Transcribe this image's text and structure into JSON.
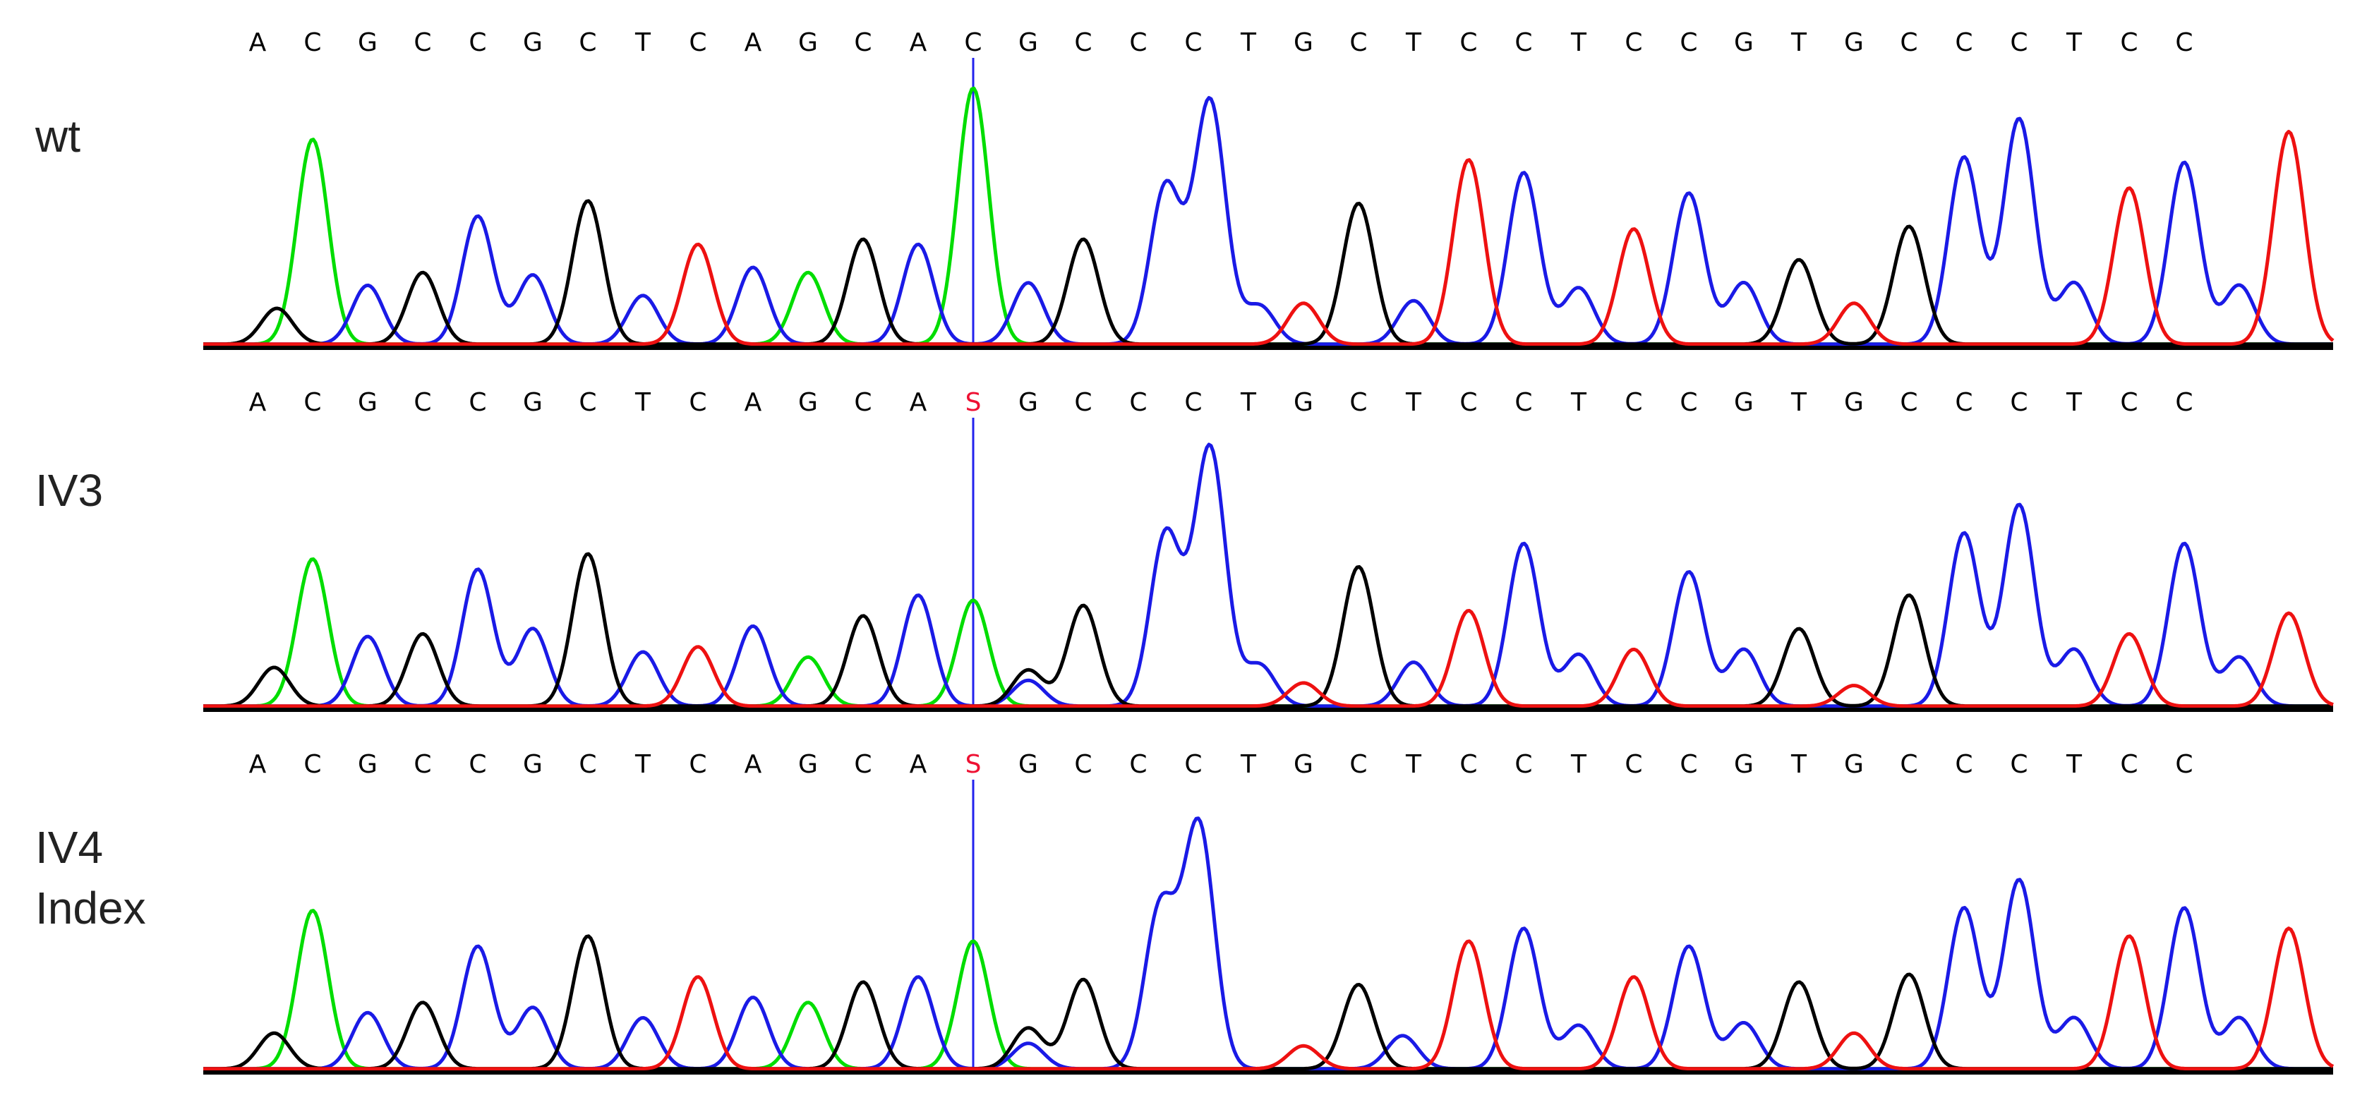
{
  "chart_data": {
    "type": "line",
    "bases": [
      "A",
      "C",
      "G",
      "C",
      "C",
      "G",
      "C",
      "T",
      "C",
      "A",
      "G",
      "C",
      "A",
      "C",
      "G",
      "C",
      "C",
      "C",
      "T",
      "G",
      "C",
      "T",
      "C",
      "C",
      "T",
      "C",
      "C",
      "G",
      "T",
      "G",
      "C",
      "C",
      "C",
      "T",
      "C",
      "C"
    ],
    "highlight_index": 13,
    "colors": {
      "A": "#00dd00",
      "C": "#1a1ae6",
      "G": "#000000",
      "T": "#ee1111",
      "call_highlight": "#ee1133",
      "cursor": "#2222ee",
      "baseline": "#000000"
    },
    "tracks": [
      {
        "label": "wt",
        "calls": [
          "A",
          "C",
          "G",
          "C",
          "C",
          "G",
          "C",
          "T",
          "C",
          "A",
          "G",
          "C",
          "A",
          "C",
          "G",
          "C",
          "C",
          "C",
          "T",
          "G",
          "C",
          "T",
          "C",
          "C",
          "T",
          "C",
          "C",
          "G",
          "T",
          "G",
          "C",
          "C",
          "C",
          "T",
          "C",
          "C"
        ],
        "peaks": [
          {
            "base": "G",
            "x": 0.35,
            "h": 0.14
          },
          {
            "base": "A",
            "x": 1,
            "h": 0.8
          },
          {
            "base": "C",
            "x": 2,
            "h": 0.23
          },
          {
            "base": "G",
            "x": 3,
            "h": 0.28
          },
          {
            "base": "C",
            "x": 4,
            "h": 0.5
          },
          {
            "base": "C",
            "x": 5,
            "h": 0.27
          },
          {
            "base": "G",
            "x": 6,
            "h": 0.56
          },
          {
            "base": "C",
            "x": 7,
            "h": 0.19
          },
          {
            "base": "T",
            "x": 8,
            "h": 0.39
          },
          {
            "base": "C",
            "x": 9,
            "h": 0.3
          },
          {
            "base": "A",
            "x": 10,
            "h": 0.28
          },
          {
            "base": "G",
            "x": 11,
            "h": 0.41
          },
          {
            "base": "C",
            "x": 12,
            "h": 0.39
          },
          {
            "base": "A",
            "x": 13,
            "h": 1.0
          },
          {
            "base": "C",
            "x": 14,
            "h": 0.24
          },
          {
            "base": "G",
            "x": 15,
            "h": 0.41
          },
          {
            "base": "C",
            "x": 16.5,
            "h": 0.62
          },
          {
            "base": "C",
            "x": 17.3,
            "h": 0.95
          },
          {
            "base": "C",
            "x": 18.2,
            "h": 0.15
          },
          {
            "base": "T",
            "x": 19,
            "h": 0.16
          },
          {
            "base": "G",
            "x": 20,
            "h": 0.55
          },
          {
            "base": "C",
            "x": 21,
            "h": 0.17
          },
          {
            "base": "T",
            "x": 22,
            "h": 0.72
          },
          {
            "base": "C",
            "x": 23,
            "h": 0.67
          },
          {
            "base": "C",
            "x": 24,
            "h": 0.22
          },
          {
            "base": "T",
            "x": 25,
            "h": 0.45
          },
          {
            "base": "C",
            "x": 26,
            "h": 0.59
          },
          {
            "base": "C",
            "x": 27,
            "h": 0.24
          },
          {
            "base": "G",
            "x": 28,
            "h": 0.33
          },
          {
            "base": "T",
            "x": 29,
            "h": 0.16
          },
          {
            "base": "G",
            "x": 30,
            "h": 0.46
          },
          {
            "base": "C",
            "x": 31,
            "h": 0.73
          },
          {
            "base": "C",
            "x": 32,
            "h": 0.88
          },
          {
            "base": "C",
            "x": 33,
            "h": 0.24
          },
          {
            "base": "T",
            "x": 34,
            "h": 0.61
          },
          {
            "base": "C",
            "x": 35,
            "h": 0.71
          },
          {
            "base": "C",
            "x": 36,
            "h": 0.23
          },
          {
            "base": "T",
            "x": 36.9,
            "h": 0.83
          }
        ]
      },
      {
        "label": "IV3",
        "calls": [
          "A",
          "C",
          "G",
          "C",
          "C",
          "G",
          "C",
          "T",
          "C",
          "A",
          "G",
          "C",
          "A",
          "S",
          "G",
          "C",
          "C",
          "C",
          "T",
          "G",
          "C",
          "T",
          "C",
          "C",
          "T",
          "C",
          "C",
          "G",
          "T",
          "G",
          "C",
          "C",
          "C",
          "T",
          "C",
          "C"
        ],
        "peaks": [
          {
            "base": "G",
            "x": 0.3,
            "h": 0.15
          },
          {
            "base": "A",
            "x": 1,
            "h": 0.57
          },
          {
            "base": "C",
            "x": 2,
            "h": 0.27
          },
          {
            "base": "G",
            "x": 3,
            "h": 0.28
          },
          {
            "base": "C",
            "x": 4,
            "h": 0.53
          },
          {
            "base": "C",
            "x": 5,
            "h": 0.3
          },
          {
            "base": "G",
            "x": 6,
            "h": 0.59
          },
          {
            "base": "C",
            "x": 7,
            "h": 0.21
          },
          {
            "base": "T",
            "x": 8,
            "h": 0.23
          },
          {
            "base": "C",
            "x": 9,
            "h": 0.31
          },
          {
            "base": "A",
            "x": 10,
            "h": 0.19
          },
          {
            "base": "G",
            "x": 11,
            "h": 0.35
          },
          {
            "base": "C",
            "x": 12,
            "h": 0.43
          },
          {
            "base": "A",
            "x": 13,
            "h": 0.41
          },
          {
            "base": "G",
            "x": 14,
            "h": 0.14
          },
          {
            "base": "C",
            "x": 14,
            "h": 0.1
          },
          {
            "base": "G",
            "x": 15,
            "h": 0.39
          },
          {
            "base": "C",
            "x": 16.5,
            "h": 0.67
          },
          {
            "base": "C",
            "x": 17.3,
            "h": 1.0
          },
          {
            "base": "C",
            "x": 18.2,
            "h": 0.16
          },
          {
            "base": "T",
            "x": 19,
            "h": 0.09
          },
          {
            "base": "G",
            "x": 20,
            "h": 0.54
          },
          {
            "base": "C",
            "x": 21,
            "h": 0.17
          },
          {
            "base": "T",
            "x": 22,
            "h": 0.37
          },
          {
            "base": "C",
            "x": 23,
            "h": 0.63
          },
          {
            "base": "C",
            "x": 24,
            "h": 0.2
          },
          {
            "base": "T",
            "x": 25,
            "h": 0.22
          },
          {
            "base": "C",
            "x": 26,
            "h": 0.52
          },
          {
            "base": "C",
            "x": 27,
            "h": 0.22
          },
          {
            "base": "G",
            "x": 28,
            "h": 0.3
          },
          {
            "base": "T",
            "x": 29,
            "h": 0.08
          },
          {
            "base": "G",
            "x": 30,
            "h": 0.43
          },
          {
            "base": "C",
            "x": 31,
            "h": 0.67
          },
          {
            "base": "C",
            "x": 32,
            "h": 0.78
          },
          {
            "base": "C",
            "x": 33,
            "h": 0.22
          },
          {
            "base": "T",
            "x": 34,
            "h": 0.28
          },
          {
            "base": "C",
            "x": 35,
            "h": 0.63
          },
          {
            "base": "C",
            "x": 36,
            "h": 0.19
          },
          {
            "base": "T",
            "x": 36.9,
            "h": 0.36
          }
        ]
      },
      {
        "label": "IV4\nIndex",
        "calls": [
          "A",
          "C",
          "G",
          "C",
          "C",
          "G",
          "C",
          "T",
          "C",
          "A",
          "G",
          "C",
          "A",
          "S",
          "G",
          "C",
          "C",
          "C",
          "T",
          "G",
          "C",
          "T",
          "C",
          "C",
          "T",
          "C",
          "C",
          "G",
          "T",
          "G",
          "C",
          "C",
          "C",
          "T",
          "C",
          "C"
        ],
        "peaks": [
          {
            "base": "G",
            "x": 0.3,
            "h": 0.14
          },
          {
            "base": "A",
            "x": 1,
            "h": 0.62
          },
          {
            "base": "C",
            "x": 2,
            "h": 0.22
          },
          {
            "base": "G",
            "x": 3,
            "h": 0.26
          },
          {
            "base": "C",
            "x": 4,
            "h": 0.48
          },
          {
            "base": "C",
            "x": 5,
            "h": 0.24
          },
          {
            "base": "G",
            "x": 6,
            "h": 0.52
          },
          {
            "base": "C",
            "x": 7,
            "h": 0.2
          },
          {
            "base": "T",
            "x": 8,
            "h": 0.36
          },
          {
            "base": "C",
            "x": 9,
            "h": 0.28
          },
          {
            "base": "A",
            "x": 10,
            "h": 0.26
          },
          {
            "base": "G",
            "x": 11,
            "h": 0.34
          },
          {
            "base": "C",
            "x": 12,
            "h": 0.36
          },
          {
            "base": "A",
            "x": 13,
            "h": 0.5
          },
          {
            "base": "G",
            "x": 14,
            "h": 0.16
          },
          {
            "base": "C",
            "x": 14,
            "h": 0.1
          },
          {
            "base": "G",
            "x": 15,
            "h": 0.35
          },
          {
            "base": "C",
            "x": 16.4,
            "h": 0.63
          },
          {
            "base": "C",
            "x": 17.1,
            "h": 0.95
          },
          {
            "base": "T",
            "x": 19,
            "h": 0.09
          },
          {
            "base": "G",
            "x": 20,
            "h": 0.33
          },
          {
            "base": "C",
            "x": 20.8,
            "h": 0.13
          },
          {
            "base": "T",
            "x": 22,
            "h": 0.5
          },
          {
            "base": "C",
            "x": 23,
            "h": 0.55
          },
          {
            "base": "C",
            "x": 24,
            "h": 0.17
          },
          {
            "base": "T",
            "x": 25,
            "h": 0.36
          },
          {
            "base": "C",
            "x": 26,
            "h": 0.48
          },
          {
            "base": "C",
            "x": 27,
            "h": 0.18
          },
          {
            "base": "G",
            "x": 28,
            "h": 0.34
          },
          {
            "base": "T",
            "x": 29,
            "h": 0.14
          },
          {
            "base": "G",
            "x": 30,
            "h": 0.37
          },
          {
            "base": "C",
            "x": 31,
            "h": 0.63
          },
          {
            "base": "C",
            "x": 32,
            "h": 0.74
          },
          {
            "base": "C",
            "x": 33,
            "h": 0.2
          },
          {
            "base": "T",
            "x": 34,
            "h": 0.52
          },
          {
            "base": "C",
            "x": 35,
            "h": 0.63
          },
          {
            "base": "C",
            "x": 36,
            "h": 0.2
          },
          {
            "base": "T",
            "x": 36.9,
            "h": 0.55
          }
        ]
      }
    ]
  }
}
